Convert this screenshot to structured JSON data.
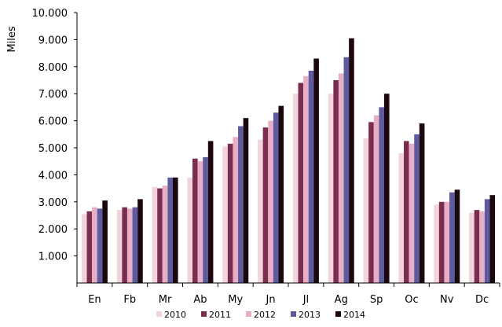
{
  "chart_data": {
    "type": "bar",
    "title": "",
    "xlabel": "",
    "ylabel": "Miles",
    "ylim": [
      0,
      10000
    ],
    "y_ticks": [
      "1.000",
      "2.000",
      "3.000",
      "4.000",
      "5.000",
      "6.000",
      "7.000",
      "8.000",
      "9.000",
      "10.000"
    ],
    "y_tick_values": [
      1000,
      2000,
      3000,
      4000,
      5000,
      6000,
      7000,
      8000,
      9000,
      10000
    ],
    "grid": false,
    "legend_position": "bottom",
    "categories": [
      "En",
      "Fb",
      "Mr",
      "Ab",
      "My",
      "Jn",
      "Jl",
      "Ag",
      "Sp",
      "Oc",
      "Nv",
      "Dc"
    ],
    "series": [
      {
        "name": "2010",
        "color": "#f2d4dc",
        "values": [
          2550,
          2700,
          3550,
          3900,
          5050,
          5300,
          7000,
          7000,
          5350,
          4800,
          2900,
          2600
        ]
      },
      {
        "name": "2011",
        "color": "#7b2d4f",
        "values": [
          2650,
          2800,
          3500,
          4600,
          5150,
          5750,
          7400,
          7500,
          5950,
          5250,
          3000,
          2700
        ]
      },
      {
        "name": "2012",
        "color": "#e8aec5",
        "values": [
          2800,
          2750,
          3600,
          4500,
          5400,
          6000,
          7650,
          7750,
          6200,
          5150,
          3000,
          2650
        ]
      },
      {
        "name": "2013",
        "color": "#5e5a9e",
        "values": [
          2750,
          2800,
          3900,
          4650,
          5800,
          6300,
          7850,
          8350,
          6500,
          5500,
          3350,
          3100
        ]
      },
      {
        "name": "2014",
        "color": "#1a0710",
        "values": [
          3050,
          3100,
          3900,
          5250,
          6100,
          6550,
          8300,
          9050,
          7000,
          5900,
          3450,
          3250
        ]
      }
    ]
  }
}
